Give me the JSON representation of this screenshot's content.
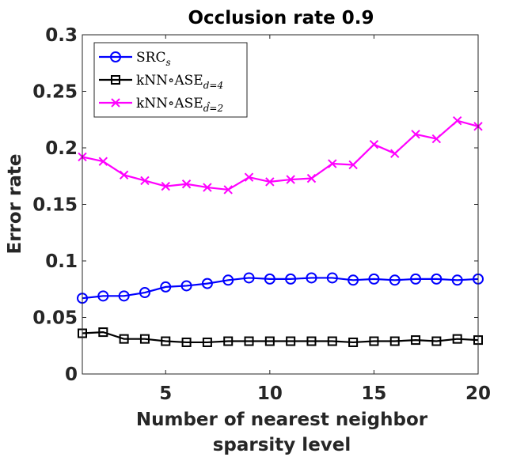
{
  "chart_data": {
    "type": "line",
    "title": "Occlusion rate 0.9",
    "xlabel_lines": [
      "Number of nearest neighbor",
      "sparsity level"
    ],
    "ylabel": "Error rate",
    "xlim": [
      1,
      20
    ],
    "ylim": [
      0,
      0.3
    ],
    "x_ticks": [
      5,
      10,
      15,
      20
    ],
    "x_tick_labels": [
      "5",
      "10",
      "15",
      "20"
    ],
    "y_ticks": [
      0,
      0.05,
      0.1,
      0.15,
      0.2,
      0.25,
      0.3
    ],
    "y_tick_labels": [
      "0",
      "0.05",
      "0.1",
      "0.15",
      "0.2",
      "0.25",
      "0.3"
    ],
    "grid": false,
    "legend_position": "top-left",
    "x": [
      1,
      2,
      3,
      4,
      5,
      6,
      7,
      8,
      9,
      10,
      11,
      12,
      13,
      14,
      15,
      16,
      17,
      18,
      19,
      20
    ],
    "series": [
      {
        "name": "SRC",
        "legend_base": "SRC",
        "legend_sub": "s",
        "color": "#0000ff",
        "marker": "circle",
        "values": [
          0.067,
          0.069,
          0.069,
          0.072,
          0.077,
          0.078,
          0.08,
          0.083,
          0.085,
          0.084,
          0.084,
          0.085,
          0.085,
          0.083,
          0.084,
          0.083,
          0.084,
          0.084,
          0.083,
          0.084
        ]
      },
      {
        "name": "kNN∘ASE d=4",
        "legend_base": "kNN∘ASE",
        "legend_sub": "d=4",
        "color": "#000000",
        "marker": "square",
        "values": [
          0.036,
          0.037,
          0.031,
          0.031,
          0.029,
          0.028,
          0.028,
          0.029,
          0.029,
          0.029,
          0.029,
          0.029,
          0.029,
          0.028,
          0.029,
          0.029,
          0.03,
          0.029,
          0.031,
          0.03
        ]
      },
      {
        "name": "kNN∘ASE d̂=2",
        "legend_base": "kNN∘ASE",
        "legend_sub": "d̂=2",
        "color": "#ff00ff",
        "marker": "x",
        "values": [
          0.192,
          0.188,
          0.176,
          0.171,
          0.166,
          0.168,
          0.165,
          0.163,
          0.174,
          0.17,
          0.172,
          0.173,
          0.186,
          0.185,
          0.203,
          0.195,
          0.212,
          0.208,
          0.224,
          0.219
        ]
      }
    ]
  }
}
